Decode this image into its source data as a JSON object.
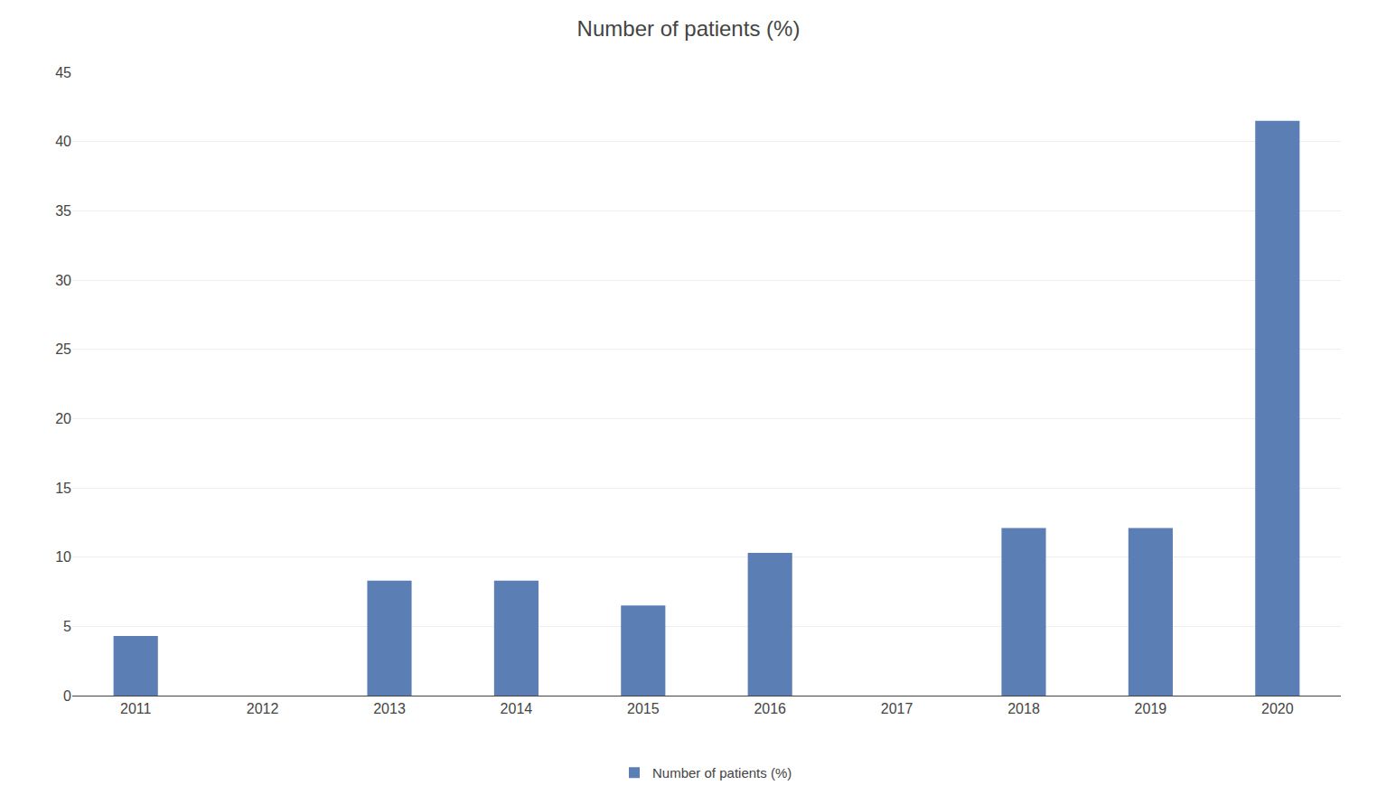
{
  "chart_data": {
    "type": "bar",
    "title": "Number of patients (%)",
    "categories": [
      "2011",
      "2012",
      "2013",
      "2014",
      "2015",
      "2016",
      "2017",
      "2018",
      "2019",
      "2020"
    ],
    "series": [
      {
        "name": "Number of patients (%)",
        "color": "#5b7fb5",
        "values": [
          4.3,
          0,
          8.3,
          8.3,
          6.5,
          10.3,
          0,
          12.1,
          12.1,
          41.5
        ]
      }
    ],
    "ylim": [
      0,
      45
    ],
    "yticks": [
      0,
      5,
      10,
      15,
      20,
      25,
      30,
      35,
      40,
      45
    ],
    "grid": true,
    "legend": "bottom"
  }
}
